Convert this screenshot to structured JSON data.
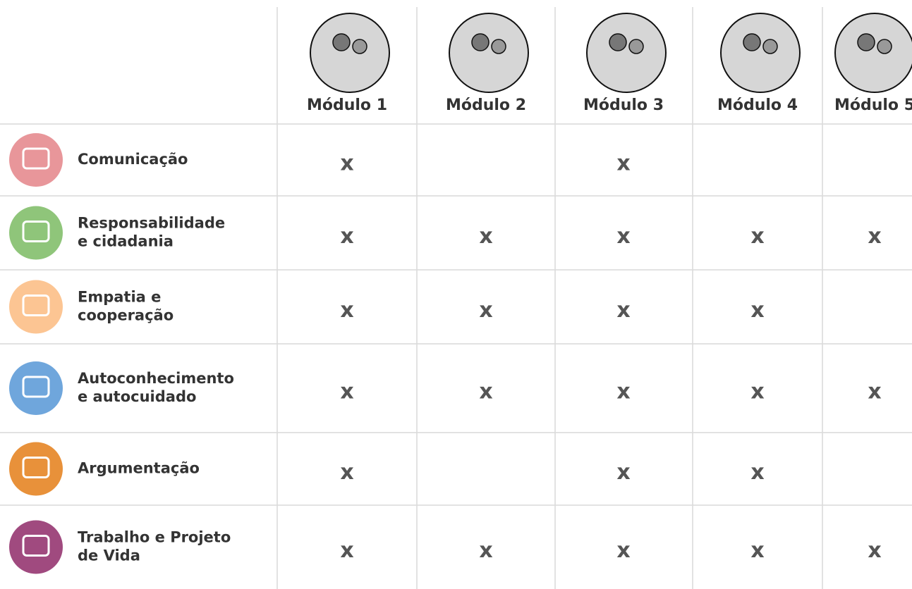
{
  "table": {
    "header": [
      "Módulo 1",
      "Módulo 2",
      "Módulo 3",
      "Módulo 4",
      "Módulo 5"
    ],
    "rows": [
      {
        "label": [
          "Comunicação"
        ],
        "cells": [
          "x",
          null,
          "x",
          null,
          null
        ]
      },
      {
        "label": [
          "Responsabilidade",
          "e cidadania"
        ],
        "cells": [
          "x",
          "x",
          "x",
          "x",
          "x"
        ]
      },
      {
        "label": [
          "Empatia e",
          "cooperação"
        ],
        "cells": [
          "x",
          "x",
          "x",
          "x",
          null
        ]
      },
      {
        "label": [
          "Autoconhecimento",
          "e autocuidado"
        ],
        "cells": [
          "x",
          "x",
          "x",
          "x",
          "x"
        ]
      },
      {
        "label": [
          "Argumentação"
        ],
        "cells": [
          "x",
          null,
          "x",
          "x",
          null
        ]
      },
      {
        "label": [
          "Trabalho e Projeto",
          "de Vida"
        ],
        "cells": [
          "x",
          "x",
          "x",
          "x",
          "x"
        ]
      }
    ]
  }
}
